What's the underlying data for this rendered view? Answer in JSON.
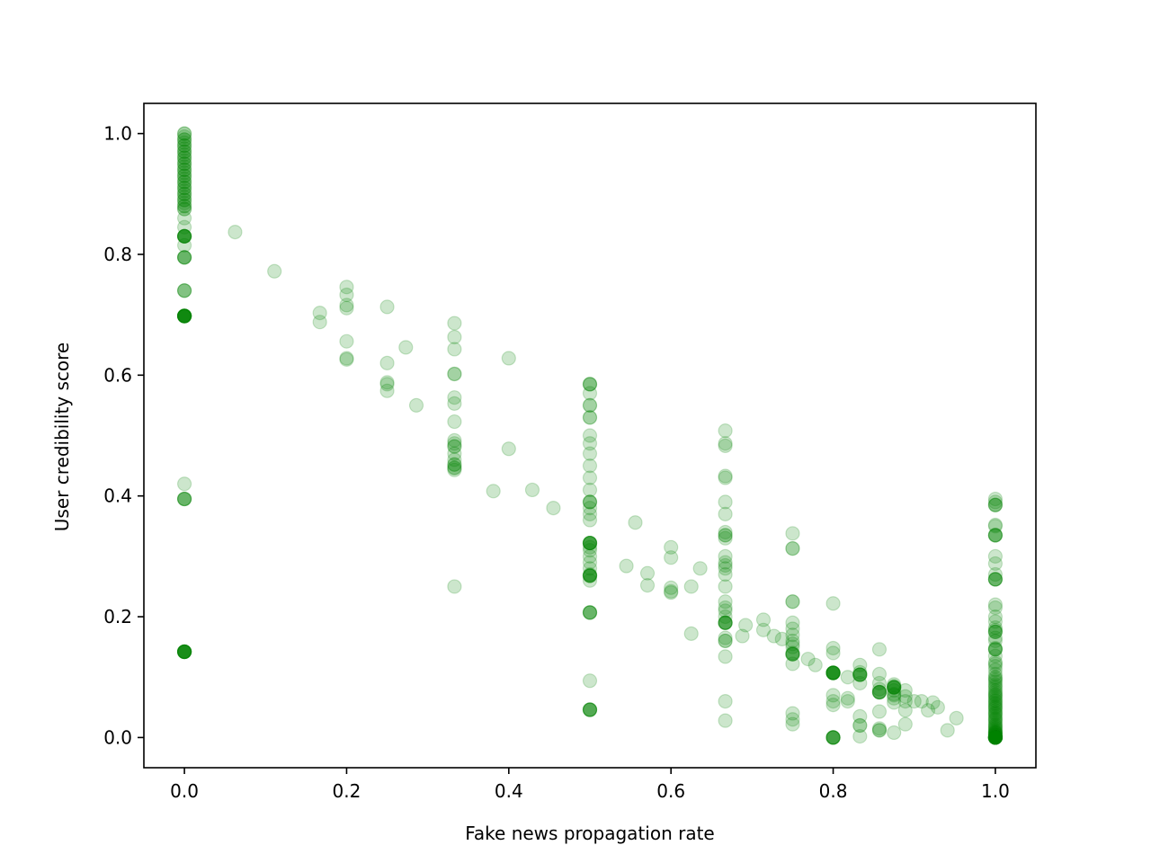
{
  "chart_data": {
    "type": "scatter",
    "xlabel": "Fake news propagation rate",
    "ylabel": "User credibility score",
    "xlim": [
      -0.05,
      1.05
    ],
    "ylim": [
      -0.05,
      1.05
    ],
    "xticks": [
      0.0,
      0.2,
      0.4,
      0.6,
      0.8,
      1.0
    ],
    "xtick_labels": [
      "0.0",
      "0.2",
      "0.4",
      "0.6",
      "0.8",
      "1.0"
    ],
    "yticks": [
      0.0,
      0.2,
      0.4,
      0.6,
      0.8,
      1.0
    ],
    "ytick_labels": [
      "0.0",
      "0.2",
      "0.4",
      "0.6",
      "0.8",
      "1.0"
    ],
    "grid": false,
    "marker_color": "#008000",
    "marker_alpha": 0.2,
    "series": [
      {
        "x": [
          0,
          0,
          0,
          0,
          0,
          0,
          0,
          0,
          0,
          0,
          0,
          0,
          0,
          0,
          0,
          0,
          0,
          0,
          0,
          0,
          0,
          0,
          0,
          0,
          0,
          0,
          0,
          0,
          0,
          0,
          0,
          0,
          0,
          0,
          0,
          0,
          0,
          0,
          0,
          0,
          0,
          0,
          0,
          0,
          0,
          0,
          0,
          0,
          0,
          0,
          0,
          0,
          0,
          0,
          0,
          0,
          0,
          0,
          0,
          0,
          0,
          0,
          0,
          0,
          0,
          0,
          0,
          0,
          0,
          0,
          0,
          0,
          0,
          0,
          0,
          0,
          0,
          0,
          0,
          0,
          0,
          0,
          0,
          0,
          0.0625,
          0.111,
          0.167,
          0.167,
          0.2,
          0.2,
          0.2,
          0.2,
          0.2,
          0.2,
          0.2,
          0.25,
          0.25,
          0.25,
          0.25,
          0.25,
          0.273,
          0.286,
          0.333,
          0.333,
          0.333,
          0.333,
          0.333,
          0.333,
          0.333,
          0.333,
          0.333,
          0.333,
          0.333,
          0.333,
          0.333,
          0.333,
          0.333,
          0.333,
          0.333,
          0.333,
          0.333,
          0.333,
          0.4,
          0.4,
          0.381,
          0.429,
          0.455,
          0.5,
          0.5,
          0.5,
          0.5,
          0.5,
          0.5,
          0.5,
          0.5,
          0.5,
          0.5,
          0.5,
          0.5,
          0.5,
          0.5,
          0.5,
          0.5,
          0.5,
          0.5,
          0.5,
          0.5,
          0.5,
          0.5,
          0.5,
          0.5,
          0.5,
          0.5,
          0.5,
          0.5,
          0.5,
          0.5,
          0.5,
          0.5,
          0.5,
          0.5,
          0.5,
          0.5,
          0.5,
          0.5,
          0.5,
          0.5,
          0.5,
          0.5,
          0.5,
          0.5,
          0.5,
          0.5,
          0.5,
          0.5,
          0.545,
          0.556,
          0.571,
          0.571,
          0.6,
          0.6,
          0.6,
          0.6,
          0.6,
          0.625,
          0.625,
          0.636,
          0.667,
          0.667,
          0.667,
          0.667,
          0.667,
          0.667,
          0.667,
          0.667,
          0.667,
          0.667,
          0.667,
          0.667,
          0.667,
          0.667,
          0.667,
          0.667,
          0.667,
          0.667,
          0.667,
          0.667,
          0.667,
          0.667,
          0.667,
          0.667,
          0.667,
          0.667,
          0.667,
          0.667,
          0.667,
          0.667,
          0.667,
          0.667,
          0.688,
          0.692,
          0.714,
          0.714,
          0.727,
          0.737,
          0.75,
          0.75,
          0.75,
          0.75,
          0.75,
          0.75,
          0.75,
          0.75,
          0.75,
          0.75,
          0.75,
          0.75,
          0.75,
          0.75,
          0.75,
          0.75,
          0.75,
          0.75,
          0.75,
          0.75,
          0.769,
          0.778,
          0.8,
          0.8,
          0.8,
          0.8,
          0.8,
          0.8,
          0.8,
          0.8,
          0.8,
          0.8,
          0.8,
          0.8,
          0.8,
          0.8,
          0.8,
          0.8,
          0.8,
          0.8,
          0.8,
          0.8,
          0.8,
          0.818,
          0.818,
          0.818,
          0.833,
          0.833,
          0.833,
          0.833,
          0.833,
          0.833,
          0.833,
          0.833,
          0.833,
          0.833,
          0.833,
          0.833,
          0.857,
          0.857,
          0.857,
          0.857,
          0.857,
          0.857,
          0.857,
          0.857,
          0.857,
          0.857,
          0.857,
          0.857,
          0.857,
          0.875,
          0.875,
          0.875,
          0.875,
          0.875,
          0.875,
          0.875,
          0.875,
          0.875,
          0.875,
          0.875,
          0.875,
          0.875,
          0.889,
          0.889,
          0.889,
          0.889,
          0.889,
          0.9,
          0.909,
          0.917,
          0.923,
          0.929,
          0.941,
          0.952,
          1,
          1,
          1,
          1,
          1,
          1,
          1,
          1,
          1,
          1,
          1,
          1,
          1,
          1,
          1,
          1,
          1,
          1,
          1,
          1,
          1,
          1,
          1,
          1,
          1,
          1,
          1,
          1,
          1,
          1,
          1,
          1,
          1,
          1,
          1,
          1,
          1,
          1,
          1,
          1,
          1,
          1,
          1,
          1,
          1,
          1,
          1,
          1,
          1,
          1,
          1,
          1,
          1,
          1,
          1,
          1,
          1,
          1,
          1,
          1,
          1,
          1,
          1,
          1,
          1,
          1,
          1,
          1,
          1,
          1,
          1,
          1,
          1,
          1,
          1,
          1,
          1,
          1,
          1,
          1,
          1,
          1,
          1,
          1,
          1,
          1,
          1,
          1,
          1,
          1,
          1,
          1,
          1,
          1,
          1,
          1,
          1,
          1,
          1,
          1
        ],
        "y": [
          1.0,
          1.0,
          0.995,
          0.99,
          0.985,
          0.98,
          0.975,
          0.97,
          0.965,
          0.96,
          0.955,
          0.95,
          0.945,
          0.94,
          0.935,
          0.93,
          0.925,
          0.92,
          0.915,
          0.91,
          0.905,
          0.9,
          0.895,
          0.89,
          0.885,
          0.88,
          0.875,
          0.99,
          0.98,
          0.97,
          0.96,
          0.95,
          0.94,
          0.93,
          0.92,
          0.91,
          0.9,
          0.89,
          0.88,
          0.875,
          0.86,
          0.845,
          0.83,
          0.83,
          0.83,
          0.83,
          0.83,
          0.83,
          0.83,
          0.815,
          0.795,
          0.795,
          0.795,
          0.795,
          0.74,
          0.74,
          0.74,
          0.698,
          0.698,
          0.698,
          0.698,
          0.698,
          0.698,
          0.698,
          0.698,
          0.698,
          0.698,
          0.698,
          0.698,
          0.42,
          0.395,
          0.395,
          0.395,
          0.395,
          0.142,
          0.142,
          0.142,
          0.142,
          0.142,
          0.142,
          0.142,
          0.142,
          0.142,
          0.142,
          0.837,
          0.772,
          0.703,
          0.688,
          0.746,
          0.733,
          0.716,
          0.711,
          0.656,
          0.628,
          0.626,
          0.713,
          0.62,
          0.588,
          0.585,
          0.574,
          0.646,
          0.55,
          0.686,
          0.663,
          0.643,
          0.602,
          0.602,
          0.563,
          0.553,
          0.523,
          0.492,
          0.487,
          0.482,
          0.482,
          0.47,
          0.46,
          0.452,
          0.447,
          0.443,
          0.446,
          0.25,
          0.452,
          0.628,
          0.478,
          0.408,
          0.41,
          0.38,
          0.585,
          0.585,
          0.585,
          0.57,
          0.55,
          0.55,
          0.53,
          0.53,
          0.5,
          0.487,
          0.47,
          0.45,
          0.43,
          0.41,
          0.39,
          0.39,
          0.39,
          0.38,
          0.37,
          0.36,
          0.322,
          0.322,
          0.322,
          0.322,
          0.322,
          0.322,
          0.315,
          0.31,
          0.3,
          0.29,
          0.28,
          0.27,
          0.268,
          0.268,
          0.268,
          0.268,
          0.268,
          0.26,
          0.207,
          0.207,
          0.207,
          0.207,
          0.094,
          0.046,
          0.046,
          0.046,
          0.046,
          0.046,
          0.284,
          0.356,
          0.272,
          0.252,
          0.315,
          0.298,
          0.248,
          0.242,
          0.24,
          0.25,
          0.172,
          0.28,
          0.508,
          0.487,
          0.483,
          0.433,
          0.43,
          0.39,
          0.37,
          0.34,
          0.335,
          0.335,
          0.33,
          0.3,
          0.29,
          0.285,
          0.28,
          0.27,
          0.25,
          0.225,
          0.215,
          0.21,
          0.2,
          0.19,
          0.19,
          0.19,
          0.19,
          0.19,
          0.165,
          0.16,
          0.16,
          0.134,
          0.06,
          0.028,
          0.168,
          0.186,
          0.195,
          0.178,
          0.168,
          0.163,
          0.338,
          0.313,
          0.313,
          0.225,
          0.225,
          0.19,
          0.18,
          0.17,
          0.16,
          0.155,
          0.15,
          0.14,
          0.138,
          0.138,
          0.138,
          0.138,
          0.122,
          0.04,
          0.03,
          0.022,
          0.13,
          0.12,
          0.222,
          0.148,
          0.14,
          0.107,
          0.107,
          0.107,
          0.107,
          0.107,
          0.107,
          0.107,
          0.107,
          0.107,
          0.07,
          0.06,
          0.054,
          0.0,
          0.0,
          0.0,
          0.0,
          0.0,
          0.0,
          0.1,
          0.065,
          0.06,
          0.12,
          0.108,
          0.104,
          0.104,
          0.104,
          0.104,
          0.104,
          0.09,
          0.035,
          0.02,
          0.02,
          0.002,
          0.146,
          0.105,
          0.09,
          0.08,
          0.075,
          0.075,
          0.075,
          0.075,
          0.075,
          0.043,
          0.015,
          0.012,
          0.012,
          0.088,
          0.085,
          0.083,
          0.083,
          0.083,
          0.083,
          0.083,
          0.078,
          0.072,
          0.07,
          0.065,
          0.058,
          0.008,
          0.078,
          0.068,
          0.06,
          0.045,
          0.022,
          0.06,
          0.06,
          0.045,
          0.058,
          0.05,
          0.012,
          0.032,
          0.395,
          0.39,
          0.385,
          0.385,
          0.385,
          0.352,
          0.35,
          0.335,
          0.335,
          0.335,
          0.335,
          0.3,
          0.288,
          0.27,
          0.262,
          0.262,
          0.262,
          0.262,
          0.22,
          0.215,
          0.2,
          0.192,
          0.182,
          0.178,
          0.175,
          0.175,
          0.175,
          0.165,
          0.16,
          0.148,
          0.146,
          0.146,
          0.146,
          0.135,
          0.125,
          0.122,
          0.118,
          0.112,
          0.105,
          0.1,
          0.098,
          0.095,
          0.092,
          0.088,
          0.085,
          0.082,
          0.078,
          0.075,
          0.072,
          0.07,
          0.068,
          0.065,
          0.062,
          0.06,
          0.057,
          0.055,
          0.052,
          0.05,
          0.048,
          0.045,
          0.042,
          0.04,
          0.038,
          0.035,
          0.032,
          0.03,
          0.028,
          0.025,
          0.022,
          0.02,
          0.018,
          0.016,
          0.014,
          0.012,
          0.01,
          0.009,
          0.008,
          0.007,
          0.006,
          0.005,
          0.004,
          0.003,
          0.002,
          0.001,
          0.0,
          0.0,
          0.0,
          0.0,
          0.0,
          0.0,
          0.0,
          0.0,
          0.0,
          0.0,
          0.0,
          0.0,
          0.0,
          0.0,
          0.0,
          0.0
        ]
      }
    ]
  }
}
